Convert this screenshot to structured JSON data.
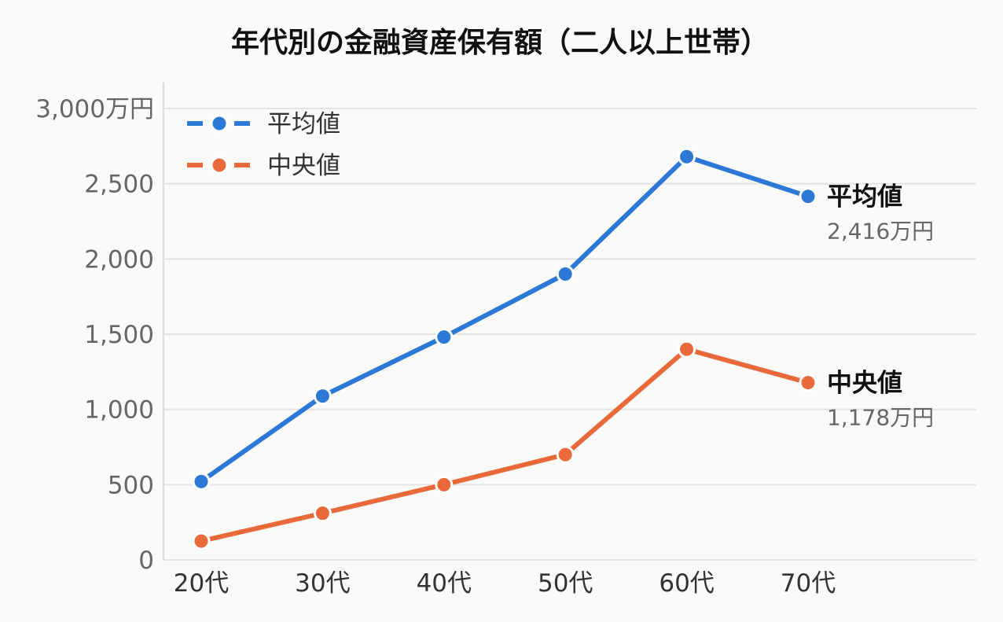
{
  "chart_data": {
    "type": "line",
    "title": "年代別の金融資産保有額（二人以上世帯）",
    "categories": [
      "20代",
      "30代",
      "40代",
      "50代",
      "60代",
      "70代"
    ],
    "y_ticks": [
      "0",
      "500",
      "1,000",
      "1,500",
      "2,000",
      "2,500",
      "3,000万円"
    ],
    "ylim": [
      0,
      3000
    ],
    "grid": true,
    "legend": "top-left",
    "series": [
      {
        "name": "平均値",
        "color": "#2b78d6",
        "values": [
          521,
          1089,
          1481,
          1900,
          2680,
          2416
        ],
        "end_label": "平均値",
        "end_value": "2,416万円"
      },
      {
        "name": "中央値",
        "color": "#e8693a",
        "values": [
          125,
          310,
          500,
          700,
          1400,
          1178
        ],
        "end_label": "中央値",
        "end_value": "1,178万円"
      }
    ]
  }
}
